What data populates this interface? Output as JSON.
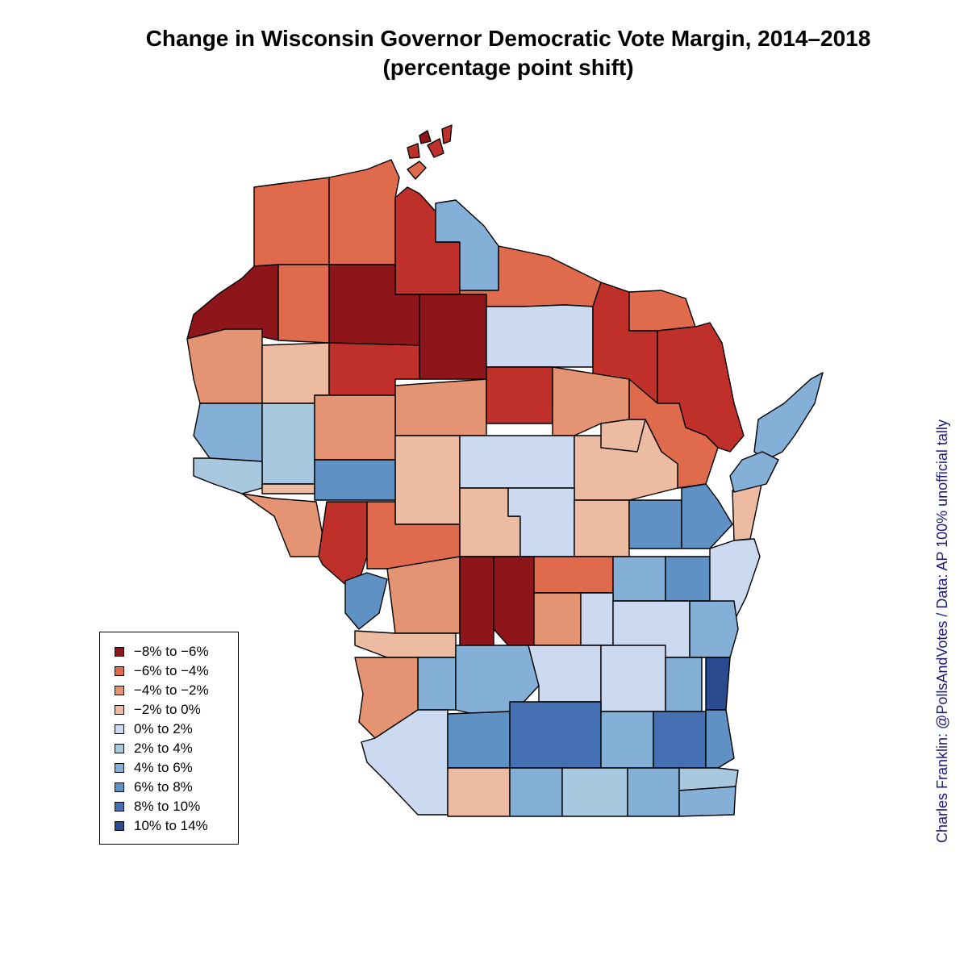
{
  "title": {
    "line1": "Change in Wisconsin Governor Democratic Vote Margin, 2014–2018",
    "line2": "(percentage point shift)"
  },
  "credit": "Charles Franklin: @PollsAndVotes / Data: AP 100% unofficial tally",
  "legend": {
    "items": [
      {
        "label": "−8% to −6%",
        "color": "#8e161b"
      },
      {
        "label": "−6% to −4%",
        "color": "#e06a4c"
      },
      {
        "label": "−4% to −2%",
        "color": "#e49373"
      },
      {
        "label": "−2% to 0%",
        "color": "#ecbba2"
      },
      {
        "label": "0% to 2%",
        "color": "#cbdaf0"
      },
      {
        "label": "2% to 4%",
        "color": "#a8c8e0"
      },
      {
        "label": "4% to 6%",
        "color": "#84afd6"
      },
      {
        "label": "6% to 8%",
        "color": "#5f91c4"
      },
      {
        "label": "8% to 10%",
        "color": "#4570b4"
      },
      {
        "label": "10% to 14%",
        "color": "#2a4b8f"
      }
    ]
  },
  "map": {
    "red_dark": "#8e161b",
    "red": "#c0302b",
    "orange": "#e06a4c",
    "salmon": "#e49373",
    "peach": "#ecbba2",
    "blue_pale": "#cbdaf0",
    "blue_light": "#a8c8e0",
    "blue_mid": "#84afd6",
    "blue": "#5f91c4",
    "blue_deep": "#4570b4",
    "blue_darkest": "#2a4b8f"
  }
}
